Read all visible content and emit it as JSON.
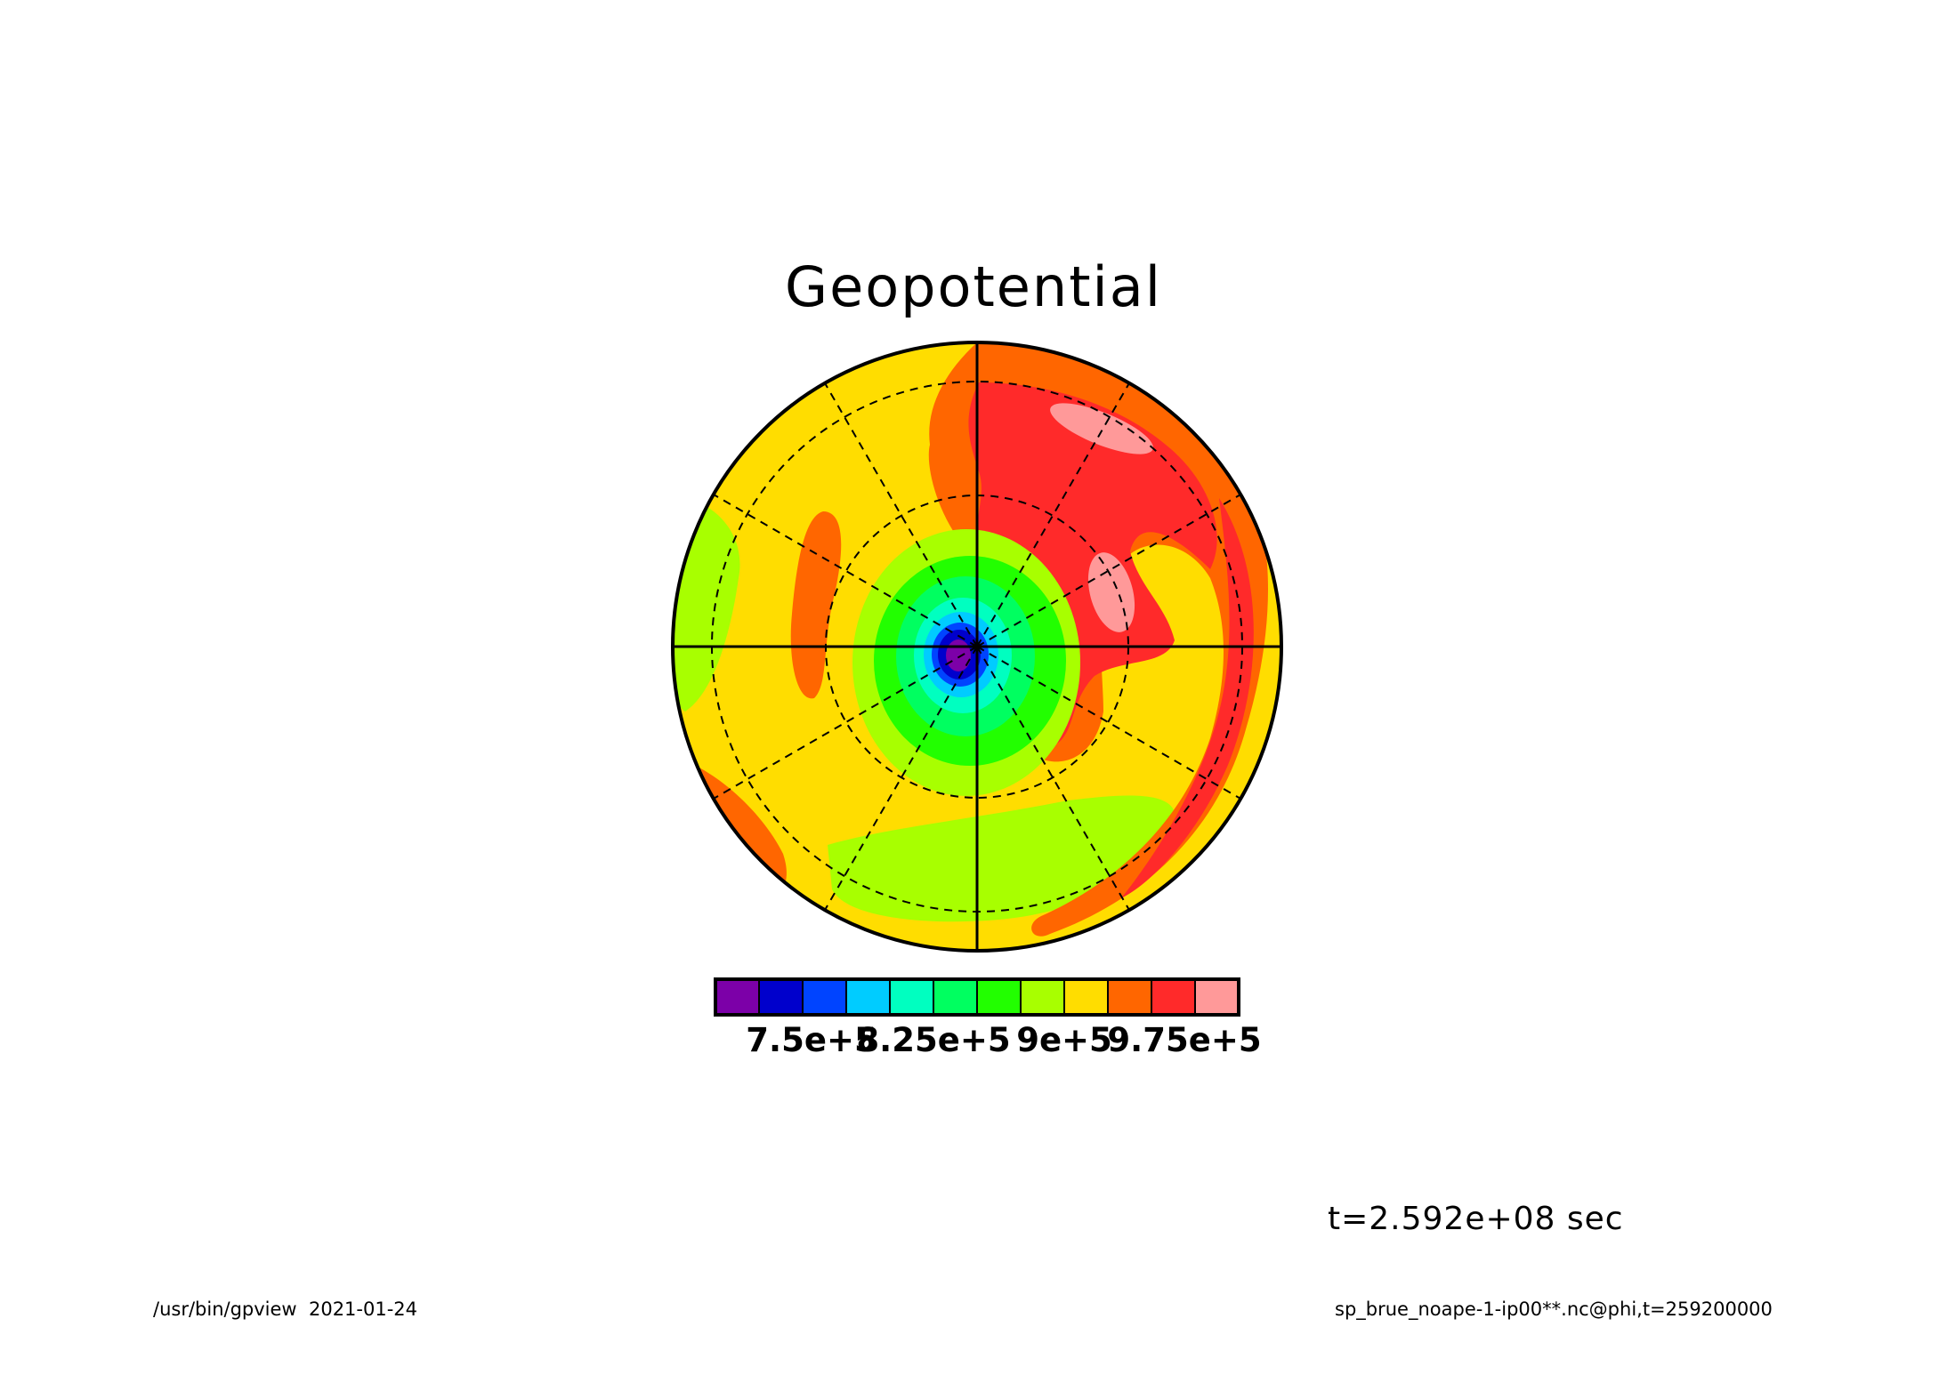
{
  "title": "Geopotential",
  "time_label": "t=2.592e+08 sec",
  "footer": {
    "program": "/usr/bin/gpview",
    "date": "2021-01-24",
    "source": "sp_brue_noape-1-ip00**.nc@phi,t=259200000"
  },
  "colorbar": {
    "colors": [
      "#7c00a8",
      "#0000cc",
      "#0044ff",
      "#00ccff",
      "#00ffc0",
      "#00ff60",
      "#22ff00",
      "#a8ff00",
      "#ffdd00",
      "#ff6600",
      "#ff2a2a",
      "#ff9999"
    ],
    "labels": [
      "7.5e+5",
      "8.25e+5",
      "9e+5",
      "9.75e+5"
    ]
  },
  "map": {
    "projection": "polar stereographic",
    "lat_circles": 3,
    "meridians": 12
  }
}
